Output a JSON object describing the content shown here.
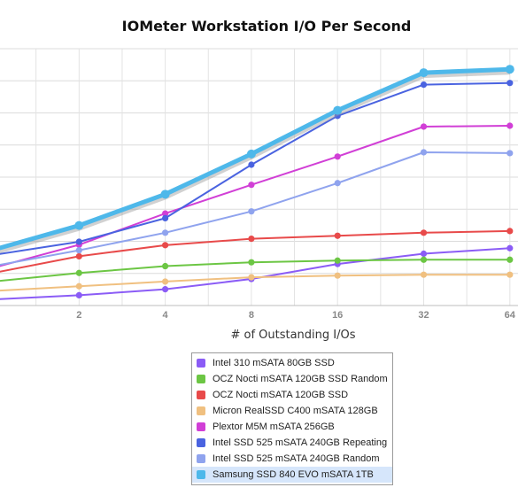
{
  "chart_data": {
    "type": "line",
    "title": "IOMeter Workstation I/O Per Second",
    "xlabel": "# of Outstanding I/Os",
    "ylabel": "",
    "x": [
      1,
      2,
      4,
      8,
      16,
      32,
      64
    ],
    "x_tick_labels": [
      "2",
      "4",
      "8",
      "16",
      "32",
      "64"
    ],
    "x_ticks_shown": [
      2,
      4,
      8,
      16,
      32,
      64
    ],
    "scale": "log2 x-axis",
    "ylim": [
      0,
      15000
    ],
    "grid": true,
    "legend_position": "bottom",
    "series": [
      {
        "name": "Intel 310 mSATA 80GB SSD",
        "color": "#8b5cf6",
        "values": [
          700,
          1200,
          1900,
          3100,
          4850,
          6050,
          6700
        ]
      },
      {
        "name": "OCZ Nocti mSATA 120GB SSD Random",
        "color": "#6cc644",
        "values": [
          2800,
          3800,
          4600,
          5050,
          5250,
          5350,
          5350
        ]
      },
      {
        "name": "OCZ Nocti mSATA 120GB SSD",
        "color": "#e84a4a",
        "values": [
          3800,
          5750,
          7050,
          7800,
          8150,
          8500,
          8700
        ]
      },
      {
        "name": "Micron RealSSD C400 mSATA 128GB",
        "color": "#f0c080",
        "values": [
          1700,
          2250,
          2800,
          3300,
          3500,
          3600,
          3600
        ]
      },
      {
        "name": "Plextor M5M mSATA 256GB",
        "color": "#d13fd6",
        "values": [
          4400,
          7100,
          10750,
          14100,
          17400,
          20900,
          21000
        ]
      },
      {
        "name": "Intel SSD 525 mSATA 240GB Repeating",
        "color": "#4a63e0",
        "values": [
          5900,
          7450,
          10200,
          16450,
          22150,
          25800,
          26000
        ]
      },
      {
        "name": "Intel SSD 525 mSATA 240GB Random",
        "color": "#8fa3ee",
        "values": [
          4600,
          6450,
          8500,
          11000,
          14300,
          17900,
          17800
        ]
      },
      {
        "name": "Samsung SSD 840 EVO mSATA 1TB",
        "color": "#4eb8ea",
        "values": [
          6500,
          9350,
          13000,
          17700,
          22800,
          27200,
          27600
        ]
      }
    ]
  },
  "legend": {
    "highlighted": "Samsung SSD 840 EVO mSATA 1TB"
  }
}
